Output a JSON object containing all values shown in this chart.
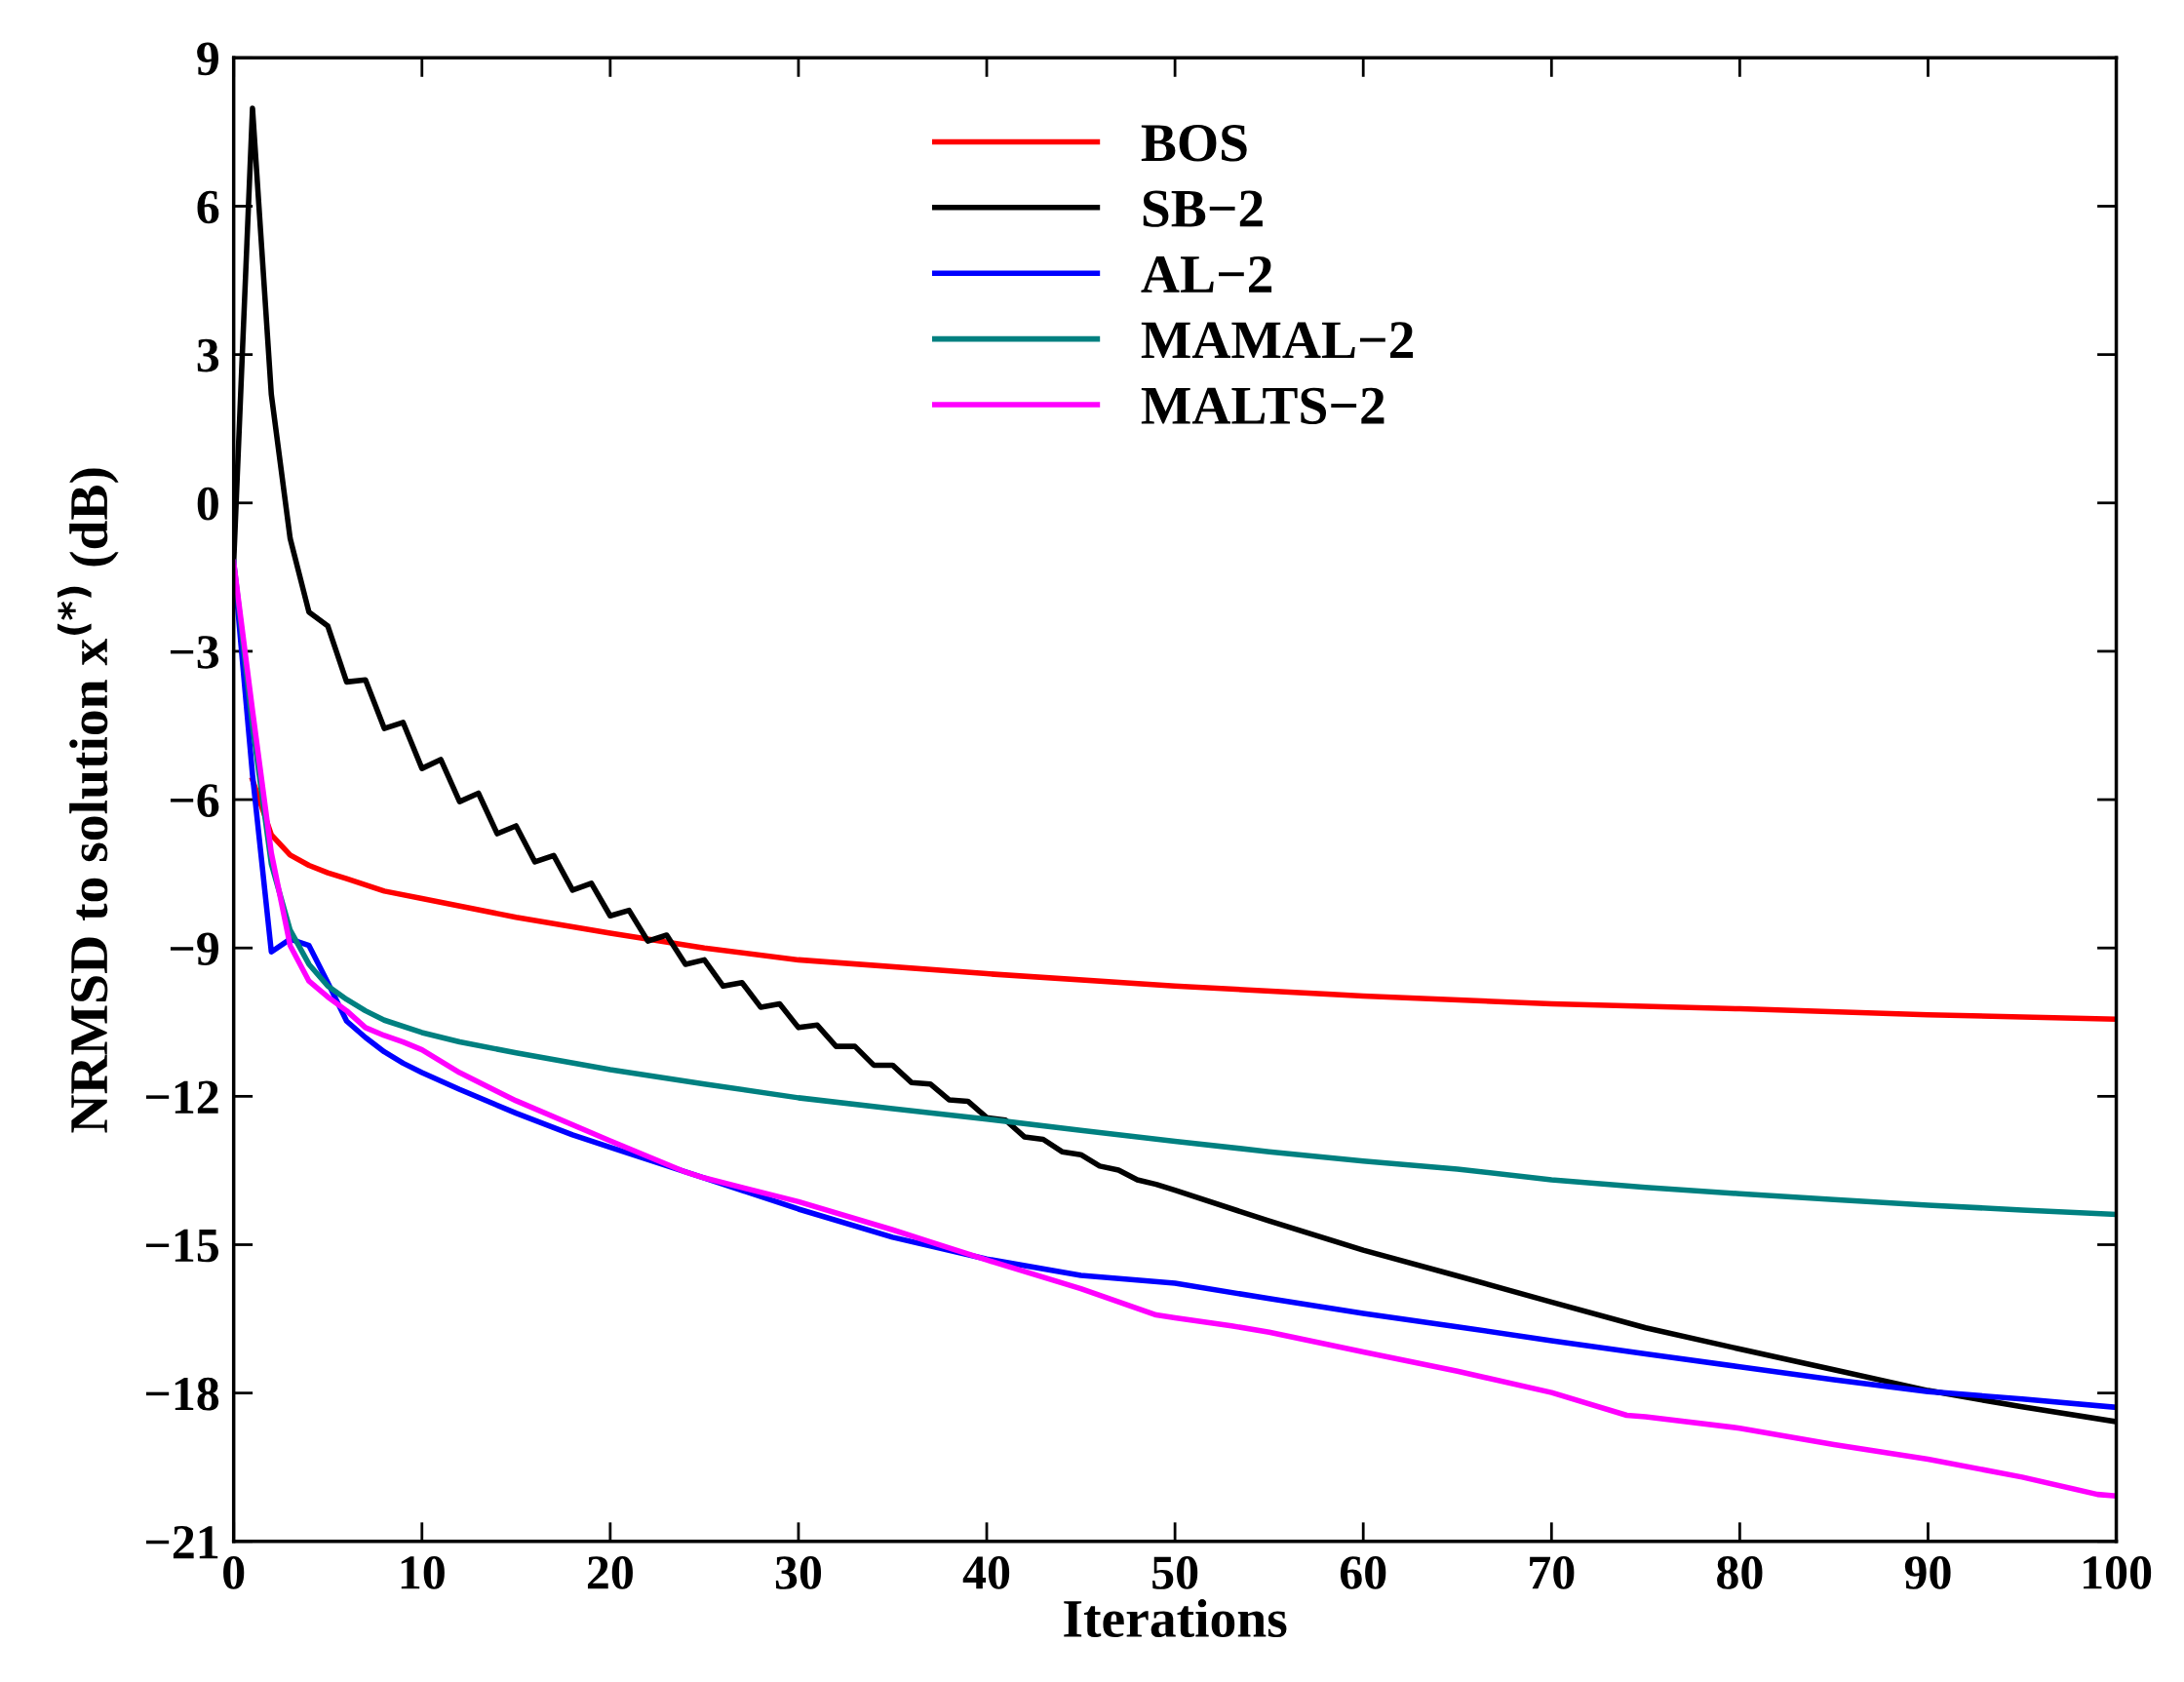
{
  "chart_data": {
    "type": "line",
    "xlabel": "Iterations",
    "ylabel": "NRMSD to solution x$^{(*)}$ (dB)",
    "xlim": [
      0,
      100
    ],
    "xticks": [
      0,
      10,
      20,
      30,
      40,
      50,
      60,
      70,
      80,
      90,
      100
    ],
    "ylim": [
      -21,
      9
    ],
    "yticks": [
      {
        "value": -21,
        "label": "−21"
      },
      {
        "value": -18,
        "label": "−18"
      },
      {
        "value": -15,
        "label": "−15"
      },
      {
        "value": -12,
        "label": "−12"
      },
      {
        "value": -9,
        "label": "−9"
      },
      {
        "value": -6,
        "label": "−6"
      },
      {
        "value": -3,
        "label": "−3"
      },
      0,
      3,
      6,
      9
    ],
    "grid": false,
    "legend": "top",
    "line_style": "solid",
    "marker": "none",
    "series": [
      {
        "name": "BOS",
        "color": "#ff0000",
        "x": [
          1,
          2,
          3,
          4,
          5,
          6,
          8,
          10,
          15,
          20,
          25,
          30,
          40,
          50,
          60,
          70,
          80,
          90,
          100
        ],
        "values": [
          -5.6,
          -6.71,
          -7.12,
          -7.33,
          -7.48,
          -7.6,
          -7.85,
          -8.0,
          -8.38,
          -8.7,
          -9.0,
          -9.24,
          -9.52,
          -9.77,
          -9.97,
          -10.13,
          -10.23,
          -10.35,
          -10.44
        ]
      },
      {
        "name": "SB−2",
        "color": "#000000",
        "x": [
          0,
          1,
          2,
          3,
          4,
          5,
          6,
          7,
          8,
          9,
          10,
          11,
          12,
          13,
          14,
          15,
          16,
          17,
          18,
          19,
          20,
          21,
          22,
          23,
          24,
          25,
          26,
          27,
          28,
          29,
          30,
          31,
          32,
          33,
          34,
          35,
          36,
          37,
          38,
          39,
          40,
          41,
          42,
          43,
          44,
          45,
          46,
          47,
          48,
          49,
          50,
          55,
          60,
          65,
          70,
          75,
          80,
          85,
          90,
          95,
          100
        ],
        "values": [
          -1.2,
          7.98,
          2.19,
          -0.72,
          -2.21,
          -2.49,
          -3.62,
          -3.58,
          -4.56,
          -4.44,
          -5.37,
          -5.19,
          -6.04,
          -5.87,
          -6.69,
          -6.53,
          -7.26,
          -7.13,
          -7.83,
          -7.69,
          -8.35,
          -8.24,
          -8.86,
          -8.74,
          -9.33,
          -9.24,
          -9.77,
          -9.7,
          -10.2,
          -10.13,
          -10.61,
          -10.56,
          -10.99,
          -10.99,
          -11.37,
          -11.37,
          -11.72,
          -11.75,
          -12.07,
          -12.1,
          -12.43,
          -12.48,
          -12.82,
          -12.87,
          -13.12,
          -13.18,
          -13.41,
          -13.49,
          -13.69,
          -13.78,
          -13.9,
          -14.52,
          -15.11,
          -15.63,
          -16.16,
          -16.68,
          -17.11,
          -17.53,
          -17.95,
          -18.28,
          -18.58
        ]
      },
      {
        "name": "AL−2",
        "color": "#0000ff",
        "x": [
          0,
          1,
          2,
          3,
          4,
          5,
          6,
          7,
          8,
          9,
          10,
          12,
          15,
          18,
          20,
          25,
          30,
          35,
          40,
          45,
          50,
          55,
          60,
          65,
          70,
          75,
          80,
          85,
          90,
          95,
          100
        ],
        "values": [
          -1.2,
          -5.5,
          -9.08,
          -8.82,
          -8.95,
          -9.7,
          -10.48,
          -10.81,
          -11.1,
          -11.33,
          -11.52,
          -11.86,
          -12.34,
          -12.78,
          -13.03,
          -13.65,
          -14.28,
          -14.85,
          -15.29,
          -15.62,
          -15.78,
          -16.09,
          -16.39,
          -16.66,
          -16.94,
          -17.21,
          -17.47,
          -17.73,
          -17.97,
          -18.12,
          -18.29
        ]
      },
      {
        "name": "MAMAL−2",
        "color": "#008080",
        "x": [
          0,
          1,
          2,
          3,
          4,
          5,
          6,
          7,
          8,
          10,
          12,
          15,
          20,
          25,
          30,
          35,
          40,
          45,
          50,
          55,
          60,
          65,
          70,
          75,
          80,
          85,
          90,
          95,
          100
        ],
        "values": [
          -1.2,
          -4.5,
          -7.3,
          -8.64,
          -9.33,
          -9.77,
          -10.04,
          -10.27,
          -10.46,
          -10.71,
          -10.9,
          -11.12,
          -11.46,
          -11.75,
          -12.03,
          -12.25,
          -12.46,
          -12.69,
          -12.91,
          -13.12,
          -13.31,
          -13.47,
          -13.69,
          -13.84,
          -13.97,
          -14.09,
          -14.2,
          -14.3,
          -14.39
        ]
      },
      {
        "name": "MALTS−2",
        "color": "#ff00ff",
        "x": [
          0,
          1,
          2,
          3,
          4,
          5,
          6,
          7,
          8,
          9,
          10,
          12,
          15,
          20,
          24,
          25,
          30,
          35,
          40,
          45,
          49,
          50,
          53,
          55,
          60,
          65,
          70,
          74,
          75,
          80,
          85,
          90,
          95,
          99,
          100
        ],
        "values": [
          -1.2,
          -4.2,
          -7.08,
          -8.95,
          -9.67,
          -9.99,
          -10.27,
          -10.61,
          -10.77,
          -10.9,
          -11.06,
          -11.52,
          -12.09,
          -12.9,
          -13.53,
          -13.65,
          -14.13,
          -14.7,
          -15.31,
          -15.89,
          -16.42,
          -16.48,
          -16.64,
          -16.77,
          -17.17,
          -17.56,
          -17.99,
          -18.45,
          -18.48,
          -18.71,
          -19.04,
          -19.34,
          -19.7,
          -20.05,
          -20.08
        ]
      }
    ]
  }
}
